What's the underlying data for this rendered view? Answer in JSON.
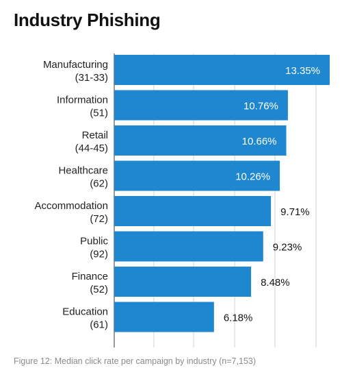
{
  "header": {
    "title": "Industry Phishing"
  },
  "caption": "Figure 12: Median click rate per campaign by industry (n=7,153)",
  "colors": {
    "bar": "#1f87d0",
    "inside_label": "#ffffff",
    "outside_label": "#111111",
    "grid": "#d0d0d0",
    "axis": "#555555"
  },
  "chart_data": {
    "type": "bar",
    "orientation": "horizontal",
    "title": "Industry Phishing",
    "categories": [
      [
        "Manufacturing",
        "(31-33)"
      ],
      [
        "Information",
        "(51)"
      ],
      [
        "Retail",
        "(44-45)"
      ],
      [
        "Healthcare",
        "(62)"
      ],
      [
        "Accommodation",
        "(72)"
      ],
      [
        "Public",
        "(92)"
      ],
      [
        "Finance",
        "(52)"
      ],
      [
        "Education",
        "(61)"
      ]
    ],
    "values": [
      13.35,
      10.76,
      10.66,
      10.26,
      9.71,
      9.23,
      8.48,
      6.18
    ],
    "value_labels": [
      "13.35%",
      "10.76%",
      "10.66%",
      "10.26%",
      "9.71%",
      "9.23%",
      "8.48%",
      "6.18%"
    ],
    "xlim": [
      0,
      13.35
    ],
    "grid": true,
    "legend": "none"
  }
}
